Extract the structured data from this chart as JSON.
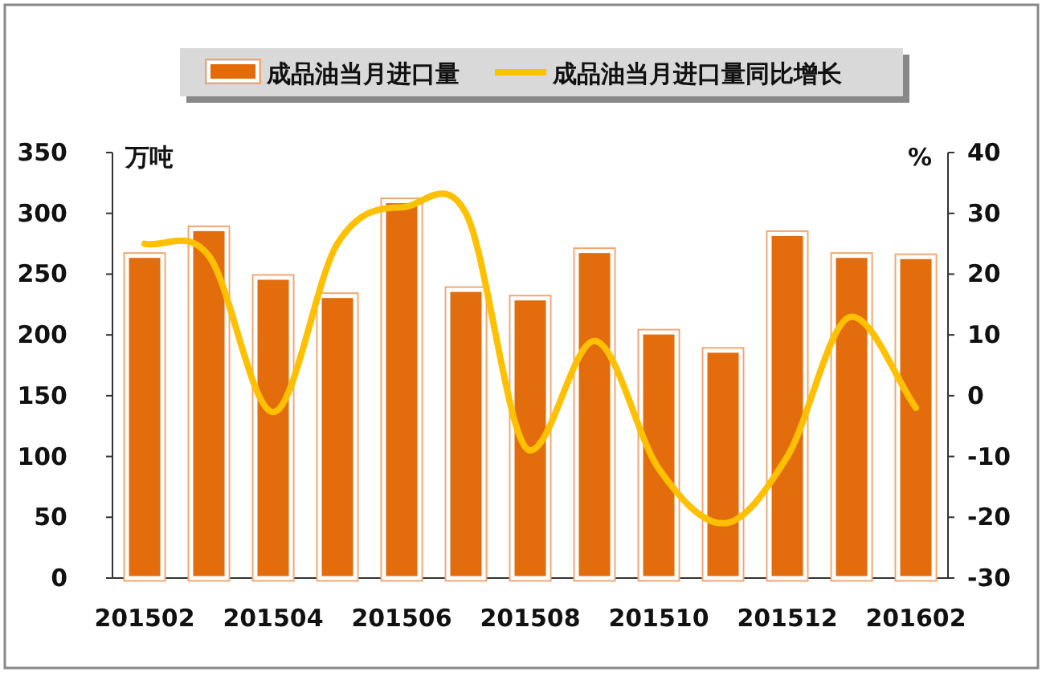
{
  "chart_data": {
    "type": "bar",
    "categories": [
      "201502",
      null,
      "201504",
      null,
      "201506",
      null,
      "201508",
      null,
      "201510",
      null,
      "201512",
      null,
      "201602"
    ],
    "series": [
      {
        "name": "成品油当月进口量",
        "color": "#e36c09",
        "values": [
          265,
          287,
          247,
          232,
          310,
          237,
          230,
          269,
          202,
          187,
          283,
          265,
          264
        ]
      },
      {
        "name": "成品油当月进口量同比增长",
        "type": "line",
        "axis": "y2",
        "color": "#ffc000",
        "values": [
          25,
          23,
          -2.7,
          25,
          31,
          30,
          -9,
          9,
          -12,
          -21,
          -10,
          13,
          -2
        ]
      }
    ],
    "ylabel": "万吨",
    "y2label": "%",
    "ylim": [
      0,
      350
    ],
    "yticks": [
      0,
      50,
      100,
      150,
      200,
      250,
      300,
      350
    ],
    "y2lim": [
      -30,
      40
    ],
    "y2ticks": [
      -30,
      -20,
      -10,
      0,
      10,
      20,
      30,
      40
    ],
    "legend": "top",
    "grid": false,
    "marker": "none"
  }
}
